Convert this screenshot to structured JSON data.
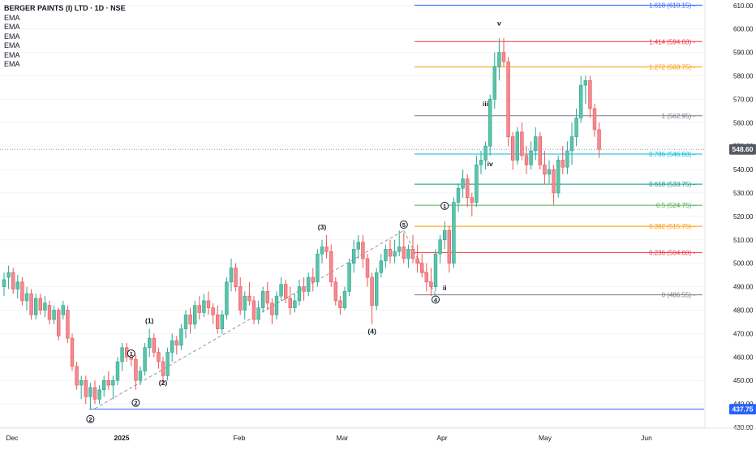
{
  "legend": {
    "title": "BERGER PAINTS (I) LTD · 1D · NSE",
    "indicators": [
      "EMA",
      "EMA",
      "EMA",
      "EMA",
      "EMA",
      "EMA"
    ]
  },
  "price_axis": {
    "ticks": [
      "610.00",
      "600.00",
      "590.00",
      "580.00",
      "570.00",
      "560.00",
      "550.00",
      "540.00",
      "530.00",
      "520.00",
      "510.00",
      "500.00",
      "490.00",
      "480.00",
      "470.00",
      "460.00",
      "450.00",
      "440.00",
      "430.00"
    ],
    "current_price": "548.60",
    "support_label": "437.75"
  },
  "time_axis": {
    "labels": [
      "Dec",
      "2025",
      "Feb",
      "Mar",
      "Apr",
      "May",
      "Jun"
    ]
  },
  "colors": {
    "bull": "#5fc3a3",
    "bear": "#f08b95",
    "support": "#2962ff"
  },
  "chart_data": {
    "type": "candlestick",
    "symbol": "BERGER PAINTS (I) LTD",
    "interval": "1D",
    "exchange": "NSE",
    "ylim": [
      430,
      612
    ],
    "current_price": 548.6,
    "support_level": 437.75,
    "fibonacci": [
      {
        "ratio": "1.618",
        "price": 610.15,
        "label": "1.618 (610.15)",
        "color": "#2962ff"
      },
      {
        "ratio": "1.414",
        "price": 594.6,
        "label": "1.414 (594.60)",
        "color": "#f23645"
      },
      {
        "ratio": "1.272",
        "price": 583.75,
        "label": "1.272 (583.75)",
        "color": "#ff9800"
      },
      {
        "ratio": "1",
        "price": 562.95,
        "label": "1 (562.95)",
        "color": "#787b86"
      },
      {
        "ratio": "0.786",
        "price": 546.6,
        "label": "0.786 (546.60)",
        "color": "#00bcd4"
      },
      {
        "ratio": "0.618",
        "price": 533.75,
        "label": "0.618 (533.75)",
        "color": "#089981"
      },
      {
        "ratio": "0.5",
        "price": 524.75,
        "label": "0.5 (524.75)",
        "color": "#4caf50"
      },
      {
        "ratio": "0.382",
        "price": 515.75,
        "label": "0.382 (515.75)",
        "color": "#ff9800"
      },
      {
        "ratio": "0.236",
        "price": 504.6,
        "label": "0.236 (504.60)",
        "color": "#f23645"
      },
      {
        "ratio": "0",
        "price": 486.55,
        "label": "0 (486.55)",
        "color": "#787b86"
      }
    ],
    "wave_labels": [
      {
        "text": "v",
        "i": 109,
        "price": 602.5,
        "style": "plain"
      },
      {
        "text": "iii",
        "i": 106,
        "price": 568,
        "style": "plain"
      },
      {
        "text": "iv",
        "i": 107,
        "price": 542.5,
        "style": "plain"
      },
      {
        "text": "ii",
        "i": 97,
        "price": 489.5,
        "style": "plain"
      },
      {
        "text": "(3)",
        "i": 70,
        "price": 515.5,
        "style": "plain"
      },
      {
        "text": "(4)",
        "i": 81,
        "price": 471,
        "style": "plain"
      },
      {
        "text": "(1)",
        "i": 32,
        "price": 475.5,
        "style": "plain"
      },
      {
        "text": "(2)",
        "i": 35,
        "price": 449,
        "style": "plain"
      },
      {
        "text": "1",
        "i": 28,
        "price": 461.5,
        "style": "circle"
      },
      {
        "text": "2",
        "i": 19,
        "price": 433.5,
        "style": "circle"
      },
      {
        "text": "2",
        "i": 29,
        "price": 440.5,
        "style": "circle"
      },
      {
        "text": "5",
        "i": 88,
        "price": 516.5,
        "style": "circle"
      },
      {
        "text": "4",
        "i": 95,
        "price": 484.5,
        "style": "circle"
      },
      {
        "text": "1",
        "i": 97,
        "price": 524.5,
        "style": "circle"
      }
    ],
    "candles": [
      {
        "o": 490,
        "h": 496,
        "l": 486,
        "c": 493
      },
      {
        "o": 494,
        "h": 499,
        "l": 489,
        "c": 496
      },
      {
        "o": 496,
        "h": 498,
        "l": 487,
        "c": 489
      },
      {
        "o": 489,
        "h": 495,
        "l": 485,
        "c": 492
      },
      {
        "o": 492,
        "h": 494,
        "l": 482,
        "c": 484
      },
      {
        "o": 484,
        "h": 490,
        "l": 480,
        "c": 487
      },
      {
        "o": 487,
        "h": 489,
        "l": 476,
        "c": 478
      },
      {
        "o": 478,
        "h": 487,
        "l": 476,
        "c": 485
      },
      {
        "o": 485,
        "h": 487,
        "l": 478,
        "c": 480
      },
      {
        "o": 480,
        "h": 486,
        "l": 477,
        "c": 483
      },
      {
        "o": 482,
        "h": 484,
        "l": 474,
        "c": 476
      },
      {
        "o": 476,
        "h": 482,
        "l": 474,
        "c": 480
      },
      {
        "o": 480,
        "h": 481,
        "l": 467,
        "c": 469
      },
      {
        "o": 478,
        "h": 484,
        "l": 476,
        "c": 482
      },
      {
        "o": 480,
        "h": 482,
        "l": 466,
        "c": 468
      },
      {
        "o": 468,
        "h": 470,
        "l": 454,
        "c": 456
      },
      {
        "o": 456,
        "h": 458,
        "l": 446,
        "c": 448
      },
      {
        "o": 448,
        "h": 452,
        "l": 442,
        "c": 450
      },
      {
        "o": 450,
        "h": 452,
        "l": 440,
        "c": 443
      },
      {
        "o": 443,
        "h": 449,
        "l": 438,
        "c": 447
      },
      {
        "o": 447,
        "h": 450,
        "l": 440,
        "c": 442
      },
      {
        "o": 442,
        "h": 448,
        "l": 440,
        "c": 446
      },
      {
        "o": 446,
        "h": 452,
        "l": 443,
        "c": 450
      },
      {
        "o": 450,
        "h": 454,
        "l": 446,
        "c": 448
      },
      {
        "o": 448,
        "h": 452,
        "l": 442,
        "c": 450
      },
      {
        "o": 450,
        "h": 460,
        "l": 448,
        "c": 458
      },
      {
        "o": 458,
        "h": 466,
        "l": 454,
        "c": 464
      },
      {
        "o": 464,
        "h": 466,
        "l": 458,
        "c": 460
      },
      {
        "o": 460,
        "h": 462,
        "l": 456,
        "c": 459
      },
      {
        "o": 459,
        "h": 461,
        "l": 446,
        "c": 450
      },
      {
        "o": 450,
        "h": 456,
        "l": 448,
        "c": 454
      },
      {
        "o": 454,
        "h": 466,
        "l": 452,
        "c": 464
      },
      {
        "o": 464,
        "h": 472,
        "l": 460,
        "c": 468
      },
      {
        "o": 468,
        "h": 470,
        "l": 460,
        "c": 462
      },
      {
        "o": 462,
        "h": 464,
        "l": 455,
        "c": 458
      },
      {
        "o": 458,
        "h": 460,
        "l": 448,
        "c": 452
      },
      {
        "o": 452,
        "h": 464,
        "l": 450,
        "c": 462
      },
      {
        "o": 462,
        "h": 470,
        "l": 458,
        "c": 467
      },
      {
        "o": 467,
        "h": 469,
        "l": 461,
        "c": 465
      },
      {
        "o": 465,
        "h": 474,
        "l": 463,
        "c": 472
      },
      {
        "o": 472,
        "h": 480,
        "l": 468,
        "c": 478
      },
      {
        "o": 478,
        "h": 481,
        "l": 470,
        "c": 474
      },
      {
        "o": 474,
        "h": 484,
        "l": 472,
        "c": 482
      },
      {
        "o": 482,
        "h": 486,
        "l": 476,
        "c": 479
      },
      {
        "o": 479,
        "h": 487,
        "l": 477,
        "c": 484
      },
      {
        "o": 484,
        "h": 488,
        "l": 478,
        "c": 481
      },
      {
        "o": 481,
        "h": 483,
        "l": 474,
        "c": 478
      },
      {
        "o": 478,
        "h": 482,
        "l": 470,
        "c": 472
      },
      {
        "o": 472,
        "h": 480,
        "l": 470,
        "c": 478
      },
      {
        "o": 478,
        "h": 494,
        "l": 476,
        "c": 492
      },
      {
        "o": 492,
        "h": 502,
        "l": 488,
        "c": 498
      },
      {
        "o": 498,
        "h": 500,
        "l": 488,
        "c": 490
      },
      {
        "o": 490,
        "h": 494,
        "l": 478,
        "c": 480
      },
      {
        "o": 480,
        "h": 488,
        "l": 476,
        "c": 486
      },
      {
        "o": 486,
        "h": 492,
        "l": 482,
        "c": 484
      },
      {
        "o": 484,
        "h": 486,
        "l": 474,
        "c": 476
      },
      {
        "o": 476,
        "h": 484,
        "l": 474,
        "c": 481
      },
      {
        "o": 481,
        "h": 490,
        "l": 479,
        "c": 488
      },
      {
        "o": 488,
        "h": 492,
        "l": 480,
        "c": 483
      },
      {
        "o": 483,
        "h": 485,
        "l": 474,
        "c": 478
      },
      {
        "o": 478,
        "h": 488,
        "l": 476,
        "c": 486
      },
      {
        "o": 486,
        "h": 494,
        "l": 484,
        "c": 491
      },
      {
        "o": 491,
        "h": 493,
        "l": 483,
        "c": 485
      },
      {
        "o": 485,
        "h": 490,
        "l": 478,
        "c": 481
      },
      {
        "o": 481,
        "h": 487,
        "l": 479,
        "c": 484
      },
      {
        "o": 484,
        "h": 493,
        "l": 482,
        "c": 490
      },
      {
        "o": 490,
        "h": 494,
        "l": 484,
        "c": 488
      },
      {
        "o": 488,
        "h": 496,
        "l": 486,
        "c": 494
      },
      {
        "o": 494,
        "h": 498,
        "l": 488,
        "c": 492
      },
      {
        "o": 492,
        "h": 506,
        "l": 490,
        "c": 504
      },
      {
        "o": 504,
        "h": 510,
        "l": 500,
        "c": 507
      },
      {
        "o": 507,
        "h": 512,
        "l": 502,
        "c": 505
      },
      {
        "o": 505,
        "h": 508,
        "l": 490,
        "c": 492
      },
      {
        "o": 492,
        "h": 494,
        "l": 482,
        "c": 484
      },
      {
        "o": 484,
        "h": 486,
        "l": 478,
        "c": 481
      },
      {
        "o": 481,
        "h": 490,
        "l": 480,
        "c": 488
      },
      {
        "o": 488,
        "h": 502,
        "l": 486,
        "c": 500
      },
      {
        "o": 500,
        "h": 510,
        "l": 496,
        "c": 506
      },
      {
        "o": 506,
        "h": 512,
        "l": 502,
        "c": 509
      },
      {
        "o": 509,
        "h": 512,
        "l": 498,
        "c": 502
      },
      {
        "o": 502,
        "h": 504,
        "l": 490,
        "c": 494
      },
      {
        "o": 494,
        "h": 496,
        "l": 474,
        "c": 482
      },
      {
        "o": 482,
        "h": 498,
        "l": 480,
        "c": 496
      },
      {
        "o": 496,
        "h": 504,
        "l": 494,
        "c": 501
      },
      {
        "o": 501,
        "h": 508,
        "l": 498,
        "c": 506
      },
      {
        "o": 506,
        "h": 510,
        "l": 500,
        "c": 503
      },
      {
        "o": 503,
        "h": 510,
        "l": 500,
        "c": 505
      },
      {
        "o": 505,
        "h": 514,
        "l": 503,
        "c": 507
      },
      {
        "o": 507,
        "h": 513,
        "l": 500,
        "c": 502
      },
      {
        "o": 502,
        "h": 508,
        "l": 498,
        "c": 506
      },
      {
        "o": 506,
        "h": 512,
        "l": 500,
        "c": 502
      },
      {
        "o": 502,
        "h": 508,
        "l": 496,
        "c": 500
      },
      {
        "o": 500,
        "h": 504,
        "l": 494,
        "c": 496
      },
      {
        "o": 496,
        "h": 500,
        "l": 488,
        "c": 492
      },
      {
        "o": 492,
        "h": 498,
        "l": 486,
        "c": 490
      },
      {
        "o": 490,
        "h": 506,
        "l": 488,
        "c": 504
      },
      {
        "o": 504,
        "h": 512,
        "l": 500,
        "c": 510
      },
      {
        "o": 510,
        "h": 518,
        "l": 506,
        "c": 514
      },
      {
        "o": 514,
        "h": 516,
        "l": 496,
        "c": 500
      },
      {
        "o": 500,
        "h": 528,
        "l": 498,
        "c": 526
      },
      {
        "o": 526,
        "h": 534,
        "l": 522,
        "c": 532
      },
      {
        "o": 532,
        "h": 540,
        "l": 528,
        "c": 536
      },
      {
        "o": 536,
        "h": 538,
        "l": 524,
        "c": 528
      },
      {
        "o": 528,
        "h": 530,
        "l": 520,
        "c": 526
      },
      {
        "o": 526,
        "h": 546,
        "l": 524,
        "c": 542
      },
      {
        "o": 542,
        "h": 548,
        "l": 538,
        "c": 544
      },
      {
        "o": 544,
        "h": 552,
        "l": 540,
        "c": 550
      },
      {
        "o": 550,
        "h": 572,
        "l": 546,
        "c": 570
      },
      {
        "o": 570,
        "h": 590,
        "l": 566,
        "c": 584
      },
      {
        "o": 584,
        "h": 596,
        "l": 578,
        "c": 590
      },
      {
        "o": 590,
        "h": 596,
        "l": 584,
        "c": 586
      },
      {
        "o": 586,
        "h": 588,
        "l": 550,
        "c": 554
      },
      {
        "o": 554,
        "h": 556,
        "l": 540,
        "c": 544
      },
      {
        "o": 544,
        "h": 558,
        "l": 542,
        "c": 556
      },
      {
        "o": 556,
        "h": 560,
        "l": 544,
        "c": 546
      },
      {
        "o": 546,
        "h": 550,
        "l": 538,
        "c": 542
      },
      {
        "o": 542,
        "h": 552,
        "l": 540,
        "c": 548
      },
      {
        "o": 548,
        "h": 558,
        "l": 544,
        "c": 554
      },
      {
        "o": 554,
        "h": 556,
        "l": 540,
        "c": 542
      },
      {
        "o": 542,
        "h": 548,
        "l": 534,
        "c": 538
      },
      {
        "o": 538,
        "h": 544,
        "l": 534,
        "c": 540
      },
      {
        "o": 540,
        "h": 542,
        "l": 525,
        "c": 530
      },
      {
        "o": 530,
        "h": 546,
        "l": 528,
        "c": 544
      },
      {
        "o": 544,
        "h": 550,
        "l": 538,
        "c": 541
      },
      {
        "o": 541,
        "h": 552,
        "l": 538,
        "c": 548
      },
      {
        "o": 548,
        "h": 560,
        "l": 542,
        "c": 554
      },
      {
        "o": 554,
        "h": 566,
        "l": 550,
        "c": 562
      },
      {
        "o": 562,
        "h": 580,
        "l": 560,
        "c": 576
      },
      {
        "o": 576,
        "h": 580,
        "l": 568,
        "c": 578
      },
      {
        "o": 578,
        "h": 580,
        "l": 562,
        "c": 566
      },
      {
        "o": 566,
        "h": 568,
        "l": 554,
        "c": 557
      },
      {
        "o": 557,
        "h": 560,
        "l": 545,
        "c": 548.6
      }
    ]
  }
}
